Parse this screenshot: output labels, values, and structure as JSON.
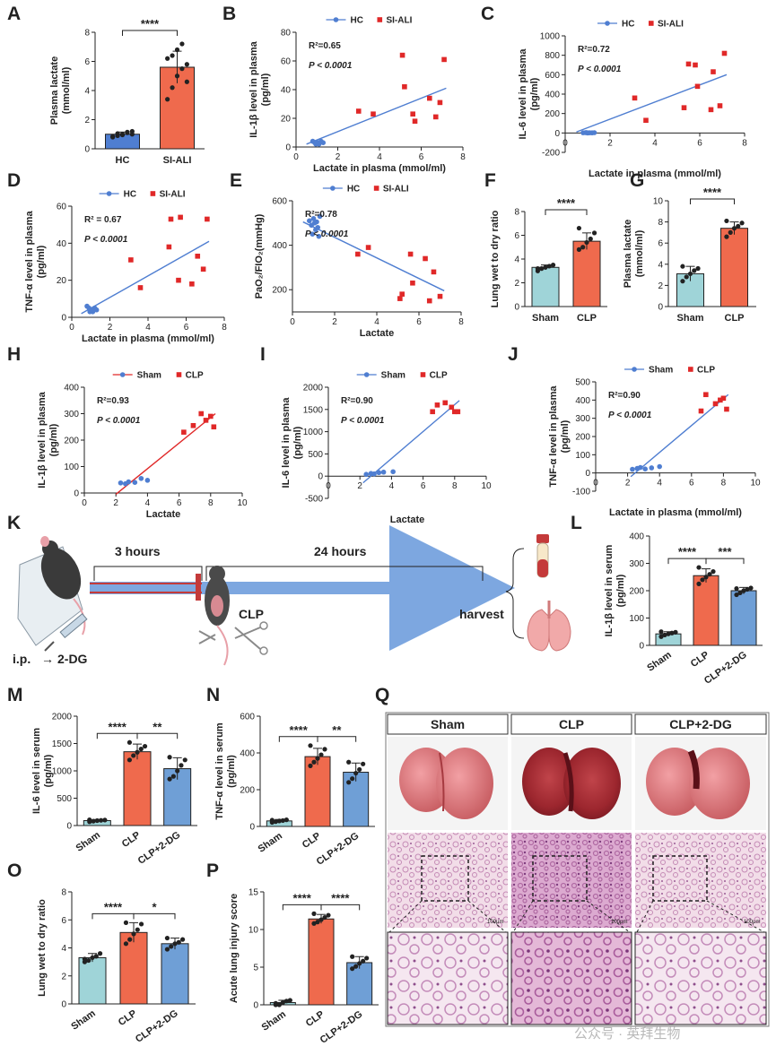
{
  "palette": {
    "hc": "#4f7ed1",
    "ali": "#e02828",
    "sham_fill": "#9fd4d8",
    "clp_fill": "#ef6a4d",
    "dg_fill": "#6f9fd6"
  },
  "panel_labels": [
    "A",
    "B",
    "C",
    "D",
    "E",
    "F",
    "G",
    "H",
    "I",
    "J",
    "K",
    "L",
    "M",
    "N",
    "O",
    "P",
    "Q"
  ],
  "panel_k": {
    "t1": "3 hours",
    "t2": "24 hours",
    "clp": "CLP",
    "harvest": "harvest",
    "ip": "i.p.",
    "arrow": "→",
    "drug": "2-DG",
    "icons": [
      "mouse-icon",
      "syringe-icon",
      "scissors-icon",
      "blood-tube-icon",
      "lungs-icon"
    ]
  },
  "panel_q": {
    "headers": [
      "Sham",
      "CLP",
      "CLP+2-DG"
    ],
    "row_labels": [],
    "scale_bar": "100μm",
    "icons": [
      "lung-photo",
      "lung-histology-low-mag",
      "lung-histology-high-mag"
    ]
  },
  "watermark": "公众号 · 英拜生物",
  "chart_data": [
    {
      "id": "A",
      "type": "bar",
      "categories": [
        "HC",
        "SI-ALI"
      ],
      "values": [
        1.0,
        5.6
      ],
      "errors": [
        0.15,
        1.1
      ],
      "ylabel": "Plasma lactate\n(mmol/ml)",
      "ylim": [
        0,
        8
      ],
      "yticks": [
        0,
        2,
        4,
        6,
        8
      ],
      "significance": [
        {
          "pair": [
            0,
            1
          ],
          "label": "****"
        }
      ],
      "points": [
        [
          0.8,
          0.9,
          1.0,
          1.1,
          1.2,
          0.85,
          1.05,
          0.95,
          1.15,
          1.0
        ],
        [
          3.4,
          4.2,
          5.0,
          5.5,
          5.8,
          6.2,
          6.4,
          6.8,
          7.2,
          4.6
        ]
      ]
    },
    {
      "id": "B",
      "type": "scatter",
      "xlabel": "Lactate in plasma (mmol/ml)",
      "ylabel": "IL-1β level in plasma\n(pg/ml)",
      "xlim": [
        0,
        8
      ],
      "ylim": [
        0,
        80
      ],
      "xticks": [
        0,
        2,
        4,
        6,
        8
      ],
      "yticks": [
        0,
        20,
        40,
        60,
        80
      ],
      "legend_placement": "top",
      "r2": "R²=0.65",
      "p": "P < 0.0001",
      "series": [
        {
          "name": "HC",
          "x": [
            0.8,
            0.9,
            1.0,
            1.1,
            1.2,
            1.3,
            0.95,
            1.05
          ],
          "y": [
            4,
            3,
            3,
            2,
            4,
            3,
            2,
            3
          ]
        },
        {
          "name": "SI-ALI",
          "x": [
            3.0,
            3.7,
            5.1,
            5.2,
            5.6,
            5.7,
            6.4,
            6.7,
            6.9,
            7.1
          ],
          "y": [
            25,
            23,
            64,
            42,
            23,
            18,
            34,
            21,
            31,
            61
          ]
        }
      ],
      "fit": {
        "x": [
          0.5,
          7.2
        ],
        "y": [
          2,
          41
        ]
      }
    },
    {
      "id": "C",
      "type": "scatter",
      "xlabel": "Lactate in plasma (mmol/ml)",
      "ylabel": "IL-6 level in plasma\n(pg/ml)",
      "xlim": [
        0,
        8
      ],
      "ylim": [
        -200,
        1000
      ],
      "xticks": [
        0,
        2,
        4,
        6,
        8
      ],
      "yticks": [
        -200,
        0,
        200,
        400,
        600,
        800,
        1000
      ],
      "legend_placement": "top",
      "r2": "R²=0.72",
      "p": "P < 0.0001",
      "series": [
        {
          "name": "HC",
          "x": [
            0.8,
            0.9,
            1.0,
            1.1,
            1.2,
            1.3,
            0.95,
            1.05
          ],
          "y": [
            2,
            3,
            0,
            2,
            1,
            3,
            4,
            2
          ]
        },
        {
          "name": "SI-ALI",
          "x": [
            3.1,
            3.6,
            5.3,
            5.5,
            5.8,
            5.9,
            6.5,
            6.6,
            6.9,
            7.1
          ],
          "y": [
            360,
            130,
            260,
            710,
            700,
            480,
            240,
            630,
            280,
            820
          ]
        }
      ],
      "fit": {
        "x": [
          0.5,
          7.2
        ],
        "y": [
          10,
          600
        ]
      }
    },
    {
      "id": "D",
      "type": "scatter",
      "xlabel": "Lactate in plasma (mmol/ml)",
      "ylabel": "TNF-α level in plasma\n(pg/ml)",
      "xlim": [
        0,
        8
      ],
      "ylim": [
        0,
        60
      ],
      "xticks": [
        0,
        2,
        4,
        6,
        8
      ],
      "yticks": [
        0,
        20,
        40,
        60
      ],
      "legend_placement": "top",
      "r2": "R² = 0.67",
      "p": "P < 0.0001",
      "series": [
        {
          "name": "HC",
          "x": [
            0.8,
            0.9,
            1.0,
            1.1,
            1.2,
            1.3,
            0.95,
            1.05
          ],
          "y": [
            6,
            5,
            4,
            3,
            5,
            4,
            3,
            4
          ]
        },
        {
          "name": "SI-ALI",
          "x": [
            3.1,
            3.6,
            5.1,
            5.2,
            5.6,
            5.7,
            6.3,
            6.6,
            6.9,
            7.1
          ],
          "y": [
            31,
            16,
            38,
            53,
            20,
            54,
            18,
            33,
            26,
            53
          ]
        }
      ],
      "fit": {
        "x": [
          0.5,
          7.2
        ],
        "y": [
          2,
          41
        ]
      }
    },
    {
      "id": "E",
      "type": "scatter",
      "xlabel": "Lactate",
      "ylabel": "PaO₂/FIO₂(mmHg)",
      "xlim": [
        0,
        8
      ],
      "ylim": [
        100,
        600
      ],
      "xticks": [
        0,
        2,
        4,
        6,
        8
      ],
      "yticks": [
        200,
        400,
        600
      ],
      "legend_placement": "top",
      "r2": "R²=0.78",
      "p": "P < 0.0001",
      "series": [
        {
          "name": "HC",
          "x": [
            0.8,
            0.9,
            1.0,
            1.1,
            1.2,
            1.3,
            0.95,
            1.05,
            1.15,
            1.25
          ],
          "y": [
            510,
            490,
            520,
            470,
            480,
            530,
            450,
            500,
            505,
            440
          ]
        },
        {
          "name": "SI-ALI",
          "x": [
            3.1,
            3.6,
            5.1,
            5.2,
            5.6,
            5.7,
            6.3,
            6.5,
            6.7,
            7.0
          ],
          "y": [
            360,
            390,
            160,
            180,
            360,
            230,
            340,
            150,
            280,
            170
          ]
        }
      ],
      "fit": {
        "x": [
          0.5,
          7.2
        ],
        "y": [
          505,
          195
        ]
      }
    },
    {
      "id": "F",
      "type": "bar",
      "categories": [
        "Sham",
        "CLP"
      ],
      "values": [
        3.3,
        5.5
      ],
      "errors": [
        0.2,
        0.7
      ],
      "ylabel": "Lung wet to dry ratio",
      "ylim": [
        0,
        8
      ],
      "yticks": [
        0,
        2,
        4,
        6,
        8
      ],
      "significance": [
        {
          "pair": [
            0,
            1
          ],
          "label": "****"
        }
      ],
      "points": [
        [
          3.0,
          3.2,
          3.3,
          3.4,
          3.5,
          3.2
        ],
        [
          4.8,
          5.0,
          5.4,
          5.7,
          6.2,
          6.6
        ]
      ]
    },
    {
      "id": "G",
      "type": "bar",
      "categories": [
        "Sham",
        "CLP"
      ],
      "values": [
        3.1,
        7.4
      ],
      "errors": [
        0.7,
        0.6
      ],
      "ylabel": "Plasma lactate\n(mmol/ml)",
      "ylim": [
        0,
        10
      ],
      "yticks": [
        0,
        2,
        4,
        6,
        8,
        10
      ],
      "significance": [
        {
          "pair": [
            0,
            1
          ],
          "label": "****"
        }
      ],
      "points": [
        [
          2.4,
          2.8,
          3.1,
          3.4,
          3.6,
          3.8
        ],
        [
          6.6,
          7.0,
          7.4,
          7.6,
          7.9,
          8.1
        ]
      ]
    },
    {
      "id": "H",
      "type": "scatter",
      "xlabel": "Lactate",
      "ylabel": "IL-1β level in plasma\n(pg/ml)",
      "xlim": [
        0,
        10
      ],
      "ylim": [
        0,
        400
      ],
      "xticks": [
        0,
        2,
        4,
        6,
        8,
        10
      ],
      "yticks": [
        0,
        100,
        200,
        300,
        400
      ],
      "legend_placement": "top",
      "r2": "R²=0.93",
      "p": "P < 0.0001",
      "series": [
        {
          "name": "Sham",
          "x": [
            2.3,
            2.6,
            2.8,
            3.2,
            3.6,
            4.0
          ],
          "y": [
            38,
            35,
            42,
            40,
            55,
            48
          ]
        },
        {
          "name": "CLP",
          "x": [
            6.3,
            6.9,
            7.4,
            7.7,
            8.0,
            8.2
          ],
          "y": [
            230,
            255,
            300,
            275,
            290,
            250
          ]
        }
      ],
      "fit": {
        "x": [
          2.0,
          8.3
        ],
        "y": [
          -5,
          300
        ]
      }
    },
    {
      "id": "I",
      "type": "scatter",
      "xlabel": "Lactate",
      "ylabel": "IL-6 level in plasma\n(pg/ml)",
      "xlim": [
        0,
        10
      ],
      "ylim": [
        -500,
        2000
      ],
      "xticks": [
        0,
        2,
        4,
        6,
        8,
        10
      ],
      "yticks": [
        -500,
        0,
        500,
        1000,
        1500,
        2000
      ],
      "legend_placement": "top",
      "r2": "R²=0.90",
      "p": "P < 0.0001",
      "series": [
        {
          "name": "Sham",
          "x": [
            2.4,
            2.7,
            2.9,
            3.2,
            3.5,
            4.1
          ],
          "y": [
            40,
            60,
            50,
            80,
            90,
            100
          ]
        },
        {
          "name": "CLP",
          "x": [
            6.6,
            6.9,
            7.4,
            7.8,
            8.0,
            8.2
          ],
          "y": [
            1450,
            1600,
            1650,
            1550,
            1450,
            1450
          ]
        }
      ],
      "fit": {
        "x": [
          2.2,
          8.3
        ],
        "y": [
          -150,
          1700
        ]
      }
    },
    {
      "id": "J",
      "type": "scatter",
      "xlabel": "Lactate in plasma (mmol/ml)",
      "ylabel": "TNF-α level in plasma\n(pg/ml)",
      "xlim": [
        0,
        10
      ],
      "ylim": [
        -100,
        500
      ],
      "xticks": [
        0,
        2,
        4,
        6,
        8,
        10
      ],
      "yticks": [
        -100,
        0,
        100,
        200,
        300,
        400,
        500
      ],
      "legend_placement": "top",
      "r2": "R²=0.90",
      "p": "P < 0.0001",
      "series": [
        {
          "name": "Sham",
          "x": [
            2.3,
            2.6,
            2.8,
            3.1,
            3.5,
            4.0
          ],
          "y": [
            20,
            25,
            30,
            22,
            28,
            35
          ]
        },
        {
          "name": "CLP",
          "x": [
            6.6,
            6.9,
            7.5,
            7.8,
            8.0,
            8.2
          ],
          "y": [
            340,
            430,
            380,
            400,
            410,
            350
          ]
        }
      ],
      "fit": {
        "x": [
          2.2,
          8.3
        ],
        "y": [
          -20,
          430
        ]
      }
    },
    {
      "id": "L",
      "type": "bar",
      "categories": [
        "Sham",
        "CLP",
        "CLP+2-DG"
      ],
      "values": [
        42,
        255,
        200
      ],
      "errors": [
        8,
        25,
        12
      ],
      "ylabel": "IL-1β level in serum\n(pg/ml)",
      "ylim": [
        0,
        400
      ],
      "yticks": [
        0,
        100,
        200,
        300,
        400
      ],
      "significance": [
        {
          "pair": [
            0,
            1
          ],
          "label": "****"
        },
        {
          "pair": [
            1,
            2
          ],
          "label": "***"
        }
      ],
      "points": [
        [
          32,
          38,
          42,
          45,
          48,
          50
        ],
        [
          225,
          240,
          250,
          260,
          270,
          285
        ],
        [
          185,
          192,
          200,
          205,
          210,
          208
        ]
      ]
    },
    {
      "id": "M",
      "type": "bar",
      "categories": [
        "Sham",
        "CLP",
        "CLP+2-DG"
      ],
      "values": [
        90,
        1350,
        1040
      ],
      "errors": [
        20,
        140,
        200
      ],
      "ylabel": "IL-6 level in serum\n(pg/ml)",
      "ylim": [
        0,
        2000
      ],
      "yticks": [
        0,
        500,
        1000,
        1500,
        2000
      ],
      "significance": [
        {
          "pair": [
            0,
            1
          ],
          "label": "****"
        },
        {
          "pair": [
            1,
            2
          ],
          "label": "**"
        }
      ],
      "points": [
        [
          70,
          80,
          90,
          95,
          100,
          105
        ],
        [
          1200,
          1280,
          1340,
          1400,
          1450,
          1520
        ],
        [
          850,
          900,
          1000,
          1100,
          1200,
          1250
        ]
      ]
    },
    {
      "id": "N",
      "type": "bar",
      "categories": [
        "Sham",
        "CLP",
        "CLP+2-DG"
      ],
      "values": [
        30,
        380,
        295
      ],
      "errors": [
        8,
        45,
        50
      ],
      "ylabel": "TNF-α level in serum\n(pg/ml)",
      "ylim": [
        0,
        600
      ],
      "yticks": [
        0,
        200,
        400,
        600
      ],
      "significance": [
        {
          "pair": [
            0,
            1
          ],
          "label": "****"
        },
        {
          "pair": [
            1,
            2
          ],
          "label": "**"
        }
      ],
      "points": [
        [
          22,
          26,
          30,
          32,
          36,
          34
        ],
        [
          330,
          350,
          370,
          390,
          420,
          440
        ],
        [
          240,
          260,
          290,
          310,
          340,
          350
        ]
      ]
    },
    {
      "id": "O",
      "type": "bar",
      "categories": [
        "Sham",
        "CLP",
        "CLP+2-DG"
      ],
      "values": [
        3.3,
        5.1,
        4.3
      ],
      "errors": [
        0.3,
        0.7,
        0.4
      ],
      "ylabel": "Lung wet to dry ratio",
      "ylim": [
        0,
        8
      ],
      "yticks": [
        0,
        2,
        4,
        6,
        8
      ],
      "significance": [
        {
          "pair": [
            0,
            1
          ],
          "label": "****"
        },
        {
          "pair": [
            1,
            2
          ],
          "label": "*"
        }
      ],
      "points": [
        [
          3.0,
          3.1,
          3.3,
          3.4,
          3.6,
          3.2
        ],
        [
          4.3,
          4.6,
          5.0,
          5.3,
          5.7,
          5.8
        ],
        [
          3.9,
          4.1,
          4.3,
          4.4,
          4.6,
          4.7
        ]
      ]
    },
    {
      "id": "P",
      "type": "bar",
      "categories": [
        "Sham",
        "CLP",
        "CLP+2-DG"
      ],
      "values": [
        0.3,
        11.4,
        5.6
      ],
      "errors": [
        0.3,
        0.6,
        0.8
      ],
      "ylabel": "Acute lung injury score",
      "ylim": [
        0,
        15
      ],
      "yticks": [
        0,
        5,
        10,
        15
      ],
      "significance": [
        {
          "pair": [
            0,
            1
          ],
          "label": "****"
        },
        {
          "pair": [
            1,
            2
          ],
          "label": "****"
        }
      ],
      "points": [
        [
          0,
          0,
          0.3,
          0.5,
          0.6,
          0.2
        ],
        [
          10.8,
          11.0,
          11.3,
          11.6,
          11.9,
          12.1
        ],
        [
          4.8,
          5.1,
          5.5,
          5.8,
          6.2,
          6.4
        ]
      ]
    }
  ]
}
